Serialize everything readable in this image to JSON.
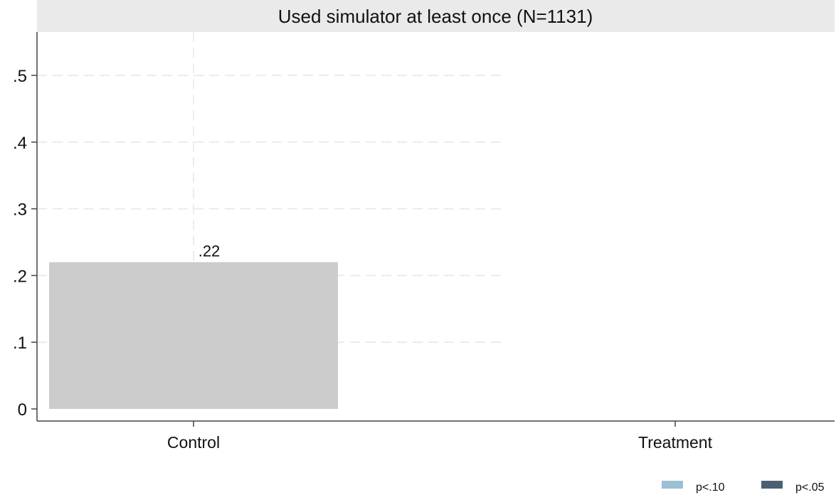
{
  "chart_data": {
    "type": "bar",
    "title": "Used simulator at least once (N=1131)",
    "categories": [
      "Control",
      "Treatment"
    ],
    "values": [
      0.22,
      null
    ],
    "value_labels": [
      ".22",
      ""
    ],
    "ylim": [
      0,
      0.56
    ],
    "yticks": [
      0,
      0.1,
      0.2,
      0.3,
      0.4,
      0.5
    ],
    "ytick_labels": [
      "0",
      ".1",
      ".2",
      ".3",
      ".4",
      ".5"
    ],
    "xlabel": "",
    "ylabel": "",
    "grid": true,
    "bar_color": "#cccccc",
    "legend": {
      "placement": "bottom-right",
      "entries": [
        {
          "label": "p<.10",
          "color": "#9cbfd3"
        },
        {
          "label": "p<.05",
          "color": "#4d5f73"
        }
      ]
    }
  }
}
